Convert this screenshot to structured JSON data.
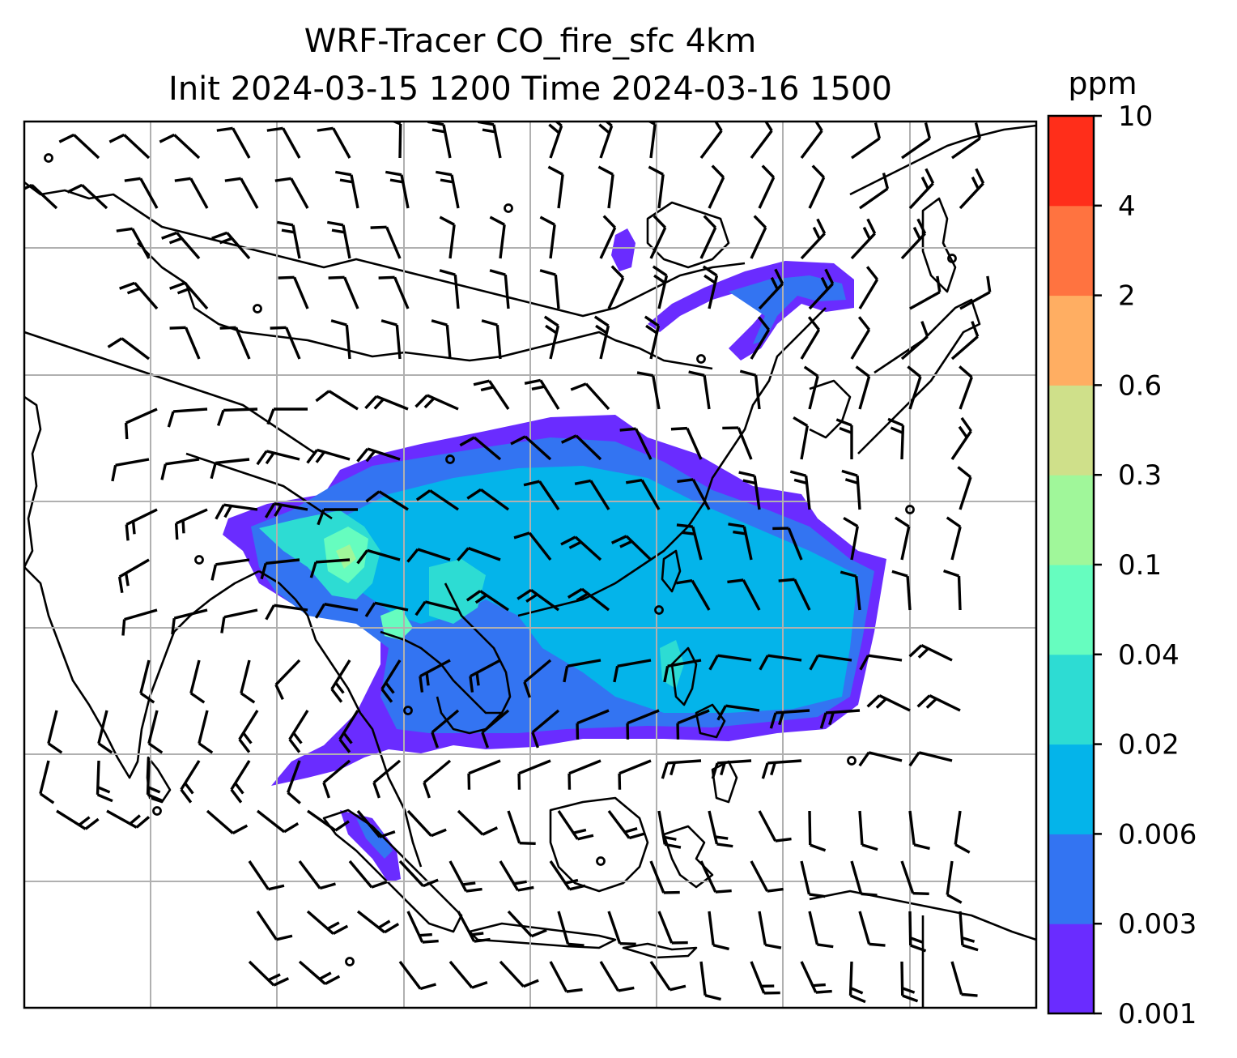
{
  "title": {
    "line1": "WRF-Tracer CO_fire_sfc 4km",
    "line2": "Init 2024-03-15 1200 Time 2024-03-16 1500"
  },
  "colorbar": {
    "unit": "ppm",
    "ticks": [
      "0.001",
      "0.003",
      "0.006",
      "0.02",
      "0.04",
      "0.1",
      "0.3",
      "0.6",
      "2",
      "4",
      "10"
    ],
    "colors": [
      "#6a2cff",
      "#3374f2",
      "#04b4ea",
      "#2ddcd3",
      "#66fdbf",
      "#a0f79a",
      "#cfe08a",
      "#ffae62",
      "#ff7340",
      "#ff2e1a"
    ]
  },
  "map": {
    "gridlines": true,
    "grid_color": "#b0b0b0",
    "wind_barbs": true,
    "coastline_color": "#000000"
  }
}
